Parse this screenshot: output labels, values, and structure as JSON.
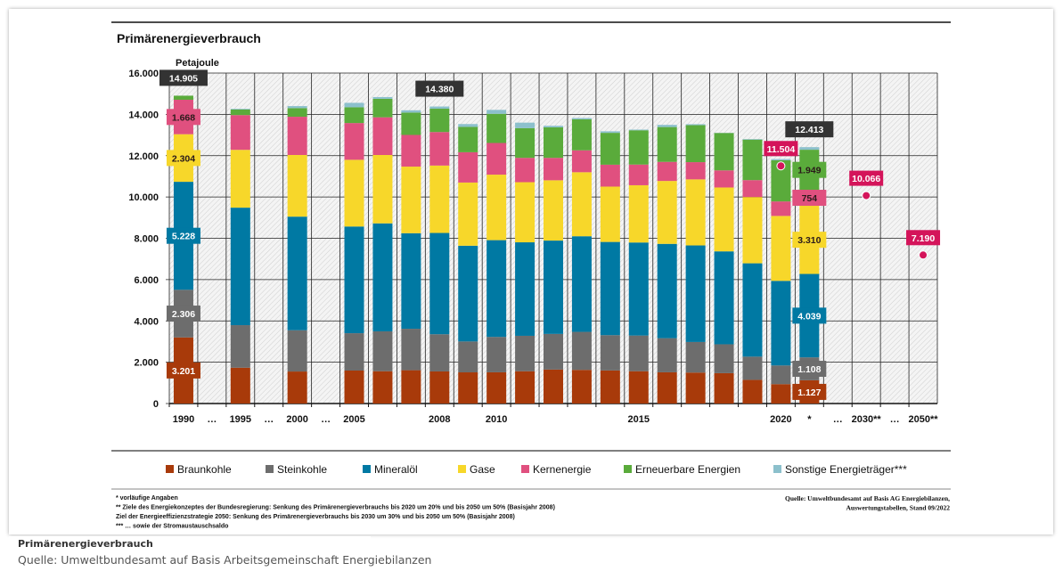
{
  "caption": {
    "title": "Primärenergieverbrauch",
    "source": "Quelle: Umweltbundesamt auf Basis Arbeitsgemeinschaft Energiebilanzen"
  },
  "chart_data": {
    "type": "bar",
    "stacked": true,
    "title": "Primärenergieverbrauch",
    "ylabel": "Petajoule",
    "ylim": [
      0,
      16000
    ],
    "yticks": [
      "0",
      "2.000",
      "4.000",
      "6.000",
      "8.000",
      "10.000",
      "12.000",
      "14.000",
      "16.000"
    ],
    "grid": true,
    "legend_position": "bottom",
    "x_slots": [
      "1990",
      "…",
      "1995",
      "…",
      "2000",
      "…",
      "2005",
      "2006",
      "2007",
      "2008",
      "2009",
      "2010",
      "2011",
      "2012",
      "2013",
      "2014",
      "2015",
      "2016",
      "2017",
      "2018",
      "2019",
      "2020",
      "*",
      "…",
      "2030**",
      "…",
      "2050**"
    ],
    "x_tick_labels": [
      "1990",
      "…",
      "1995",
      "…",
      "2000",
      "…",
      "2005",
      "",
      "",
      "2008",
      "",
      "2010",
      "",
      "",
      "",
      "",
      "2015",
      "",
      "",
      "",
      "",
      "2020",
      "*",
      "…",
      "2030**",
      "…",
      "2050**"
    ],
    "categories": [
      "1990",
      "1995",
      "2000",
      "2005",
      "2006",
      "2007",
      "2008",
      "2009",
      "2010",
      "2011",
      "2012",
      "2013",
      "2014",
      "2015",
      "2016",
      "2017",
      "2018",
      "2019",
      "2020",
      "*"
    ],
    "series": [
      {
        "name": "Braunkohle",
        "color": "#a83a0a",
        "values": [
          3201,
          1734,
          1550,
          1596,
          1565,
          1613,
          1554,
          1509,
          1512,
          1564,
          1645,
          1629,
          1601,
          1565,
          1512,
          1499,
          1470,
          1146,
          939,
          1127
        ]
      },
      {
        "name": "Steinkohle",
        "color": "#6d6d6d",
        "values": [
          2306,
          2060,
          1999,
          1808,
          1930,
          2007,
          1800,
          1496,
          1714,
          1715,
          1725,
          1840,
          1709,
          1727,
          1652,
          1480,
          1399,
          1125,
          904,
          1108
        ]
      },
      {
        "name": "Mineralöl",
        "color": "#0079a3",
        "values": [
          5228,
          5689,
          5499,
          5166,
          5228,
          4626,
          4904,
          4635,
          4684,
          4526,
          4519,
          4630,
          4513,
          4504,
          4566,
          4675,
          4498,
          4518,
          4096,
          4039
        ]
      },
      {
        "name": "Gase",
        "color": "#f7d72a",
        "values": [
          2304,
          2799,
          2985,
          3230,
          3309,
          3224,
          3263,
          3059,
          3171,
          2911,
          2920,
          3099,
          2679,
          2772,
          3046,
          3198,
          3092,
          3209,
          3143,
          3310
        ]
      },
      {
        "name": "Kernenergie",
        "color": "#e0507f",
        "values": [
          1668,
          1682,
          1851,
          1779,
          1826,
          1533,
          1623,
          1467,
          1533,
          1178,
          1085,
          1061,
          1060,
          1001,
          923,
          833,
          829,
          819,
          702,
          754
        ]
      },
      {
        "name": "Erneuerbare Energien",
        "color": "#5aab3b",
        "values": [
          196,
          270,
          418,
          764,
          893,
          1083,
          1130,
          1227,
          1413,
          1439,
          1477,
          1500,
          1543,
          1659,
          1687,
          1791,
          1809,
          1960,
          1991,
          1949
        ]
      },
      {
        "name": "Sonstige Energieträger***",
        "color": "#8cc0cc",
        "values": [
          2,
          35,
          99,
          215,
          86,
          111,
          106,
          138,
          190,
          266,
          76,
          63,
          75,
          34,
          105,
          47,
          9,
          28,
          60,
          126
        ]
      }
    ],
    "segment_labels": {
      "1990": [
        "3.201",
        "2.306",
        "5.228",
        "2.304",
        "1.668",
        "",
        ""
      ],
      "*": [
        "1.127",
        "1.108",
        "4.039",
        "3.310",
        "754",
        "1.949",
        ""
      ]
    },
    "total_labels": [
      {
        "category": "1990",
        "value": 14905,
        "text": "14.905"
      },
      {
        "category": "2008",
        "value": 14380,
        "text": "14.380"
      },
      {
        "category": "*",
        "value": 12413,
        "text": "12.413"
      }
    ],
    "targets": [
      {
        "slot": "2020",
        "value": 11504,
        "text": "11.504"
      },
      {
        "slot": "2030**",
        "value": 10066,
        "text": "10.066"
      },
      {
        "slot": "2050**",
        "value": 7190,
        "text": "7.190"
      }
    ],
    "target_color": "#d4145a",
    "total_label_color": "#333333",
    "footnotes": [
      "* vorläufige Angaben",
      "** Ziele des Energiekonzeptes der Bundesregierung: Senkung des Primärenergieverbrauchs bis 2020 um 20% und bis 2050 um 50% (Basisjahr 2008)",
      "Ziel der Energieeffizienzstrategie 2050: Senkung des Primärenergieverbrauchs bis 2030 um 30% und bis 2050 um 50% (Basisjahr 2008)",
      "*** … sowie der Stromaustauschsaldo"
    ],
    "source_lines": [
      "Quelle: Umweltbundesamt auf Basis AG Energiebilanzen,",
      "Auswertungstabellen, Stand 09/2022"
    ]
  }
}
